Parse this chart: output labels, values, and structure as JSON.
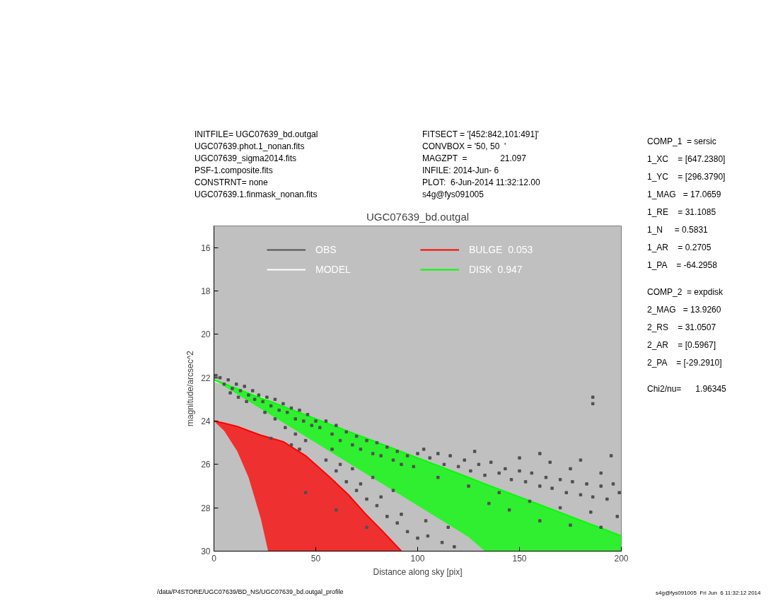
{
  "chart_data": {
    "type": "scatter",
    "title": "UGC07639_bd.outgal",
    "xlabel": "Distance along sky [pix]",
    "ylabel": "magnitude/arcsec^2",
    "xlim": [
      0,
      200
    ],
    "ylim": [
      30,
      15
    ],
    "xticks": [
      0,
      50,
      100,
      150,
      200
    ],
    "yticks": [
      16,
      18,
      20,
      22,
      24,
      26,
      28,
      30
    ],
    "grid": false,
    "legend": "top",
    "annotations": [
      "INITFILE= UGC07639_bd.outgal",
      "UGC07639.phot.1_nonan.fits",
      "UGC07639_sigma2014.fits",
      "PSF-1.composite.fits",
      "CONSTRNT= none",
      "UGC07639.1.finmask_nonan.fits",
      "FITSECT = '[452:842,101:491]'",
      "CONVBOX = '50, 50  '",
      "MAGZPT  =              21.097",
      "INFILE: 2014-Jun- 6",
      "PLOT:  6-Jun-2014 11:32:12.00",
      "s4g@fys091005",
      "COMP_1  = sersic",
      "1_XC    = [647.2380]",
      "1_YC    = [296.3790]",
      "1_MAG   = 17.0659",
      "1_RE    = 31.1085",
      "1_N     = 0.5831",
      "1_AR    = 0.2705",
      "1_PA    = -64.2958",
      "COMP_2  = expdisk",
      "2_MAG   = 13.9260",
      "2_RS    = 31.0507",
      "2_AR    = [0.5967]",
      "2_PA    = [-29.2910]",
      "Chi2/nu=      1.96345",
      "/data/P4STORE/UGC07639/BD_NS/UGC07639_bd.outgal_profile",
      "s4g@fys091005  Fri Jun  6 11:32:12 2014"
    ],
    "series": [
      {
        "name": "OBS",
        "marker": "square",
        "color": "#505050",
        "x": [
          1,
          3,
          5,
          7,
          9,
          11,
          13,
          15,
          17,
          19,
          12,
          16,
          20,
          8,
          22,
          24,
          26,
          28,
          30,
          32,
          34,
          36,
          38,
          40,
          42,
          44,
          46,
          48,
          25,
          30,
          35,
          40,
          45,
          28,
          38,
          50,
          42,
          52,
          55,
          58,
          60,
          62,
          65,
          68,
          70,
          72,
          75,
          78,
          80,
          82,
          85,
          88,
          90,
          92,
          95,
          98,
          100,
          55,
          60,
          65,
          70,
          75,
          80,
          85,
          90,
          95,
          100,
          62,
          72,
          82,
          92,
          58,
          68,
          78,
          88,
          45,
          60,
          75,
          103,
          106,
          110,
          113,
          116,
          120,
          123,
          126,
          130,
          133,
          136,
          140,
          143,
          146,
          150,
          153,
          156,
          160,
          163,
          166,
          170,
          173,
          176,
          180,
          183,
          186,
          190,
          193,
          196,
          199,
          110,
          125,
          140,
          155,
          170,
          185,
          198,
          105,
          112,
          118,
          104,
          115,
          150,
          165,
          180,
          195,
          186,
          186,
          128,
          160,
          175,
          190,
          135,
          145,
          160,
          175,
          190
        ],
        "values": [
          21.9,
          22.0,
          22.3,
          22.1,
          22.5,
          22.3,
          22.6,
          22.4,
          22.8,
          22.6,
          22.9,
          23.1,
          23.0,
          22.7,
          22.8,
          23.1,
          22.9,
          23.3,
          23.0,
          23.5,
          23.2,
          23.6,
          23.4,
          23.9,
          23.5,
          24.0,
          23.7,
          24.2,
          23.6,
          23.9,
          24.3,
          24.6,
          24.9,
          24.8,
          25.1,
          24.0,
          25.3,
          24.3,
          24.0,
          24.6,
          24.2,
          24.9,
          24.5,
          25.1,
          24.7,
          25.3,
          24.9,
          25.5,
          25.0,
          25.6,
          25.2,
          25.8,
          25.4,
          26.0,
          25.6,
          26.1,
          25.5,
          25.8,
          26.3,
          26.8,
          27.2,
          27.6,
          27.9,
          28.4,
          28.7,
          29.1,
          29.4,
          26.0,
          26.9,
          27.5,
          28.3,
          25.3,
          26.2,
          26.6,
          27.2,
          27.3,
          28.1,
          28.9,
          25.3,
          25.7,
          25.5,
          26.0,
          25.6,
          26.1,
          25.8,
          26.3,
          26.0,
          26.5,
          25.9,
          26.4,
          26.2,
          26.7,
          26.3,
          26.8,
          26.4,
          27.0,
          26.6,
          27.1,
          26.7,
          27.3,
          26.8,
          27.4,
          26.9,
          27.5,
          27.0,
          27.6,
          26.9,
          27.3,
          26.6,
          27.0,
          27.3,
          27.7,
          28.0,
          28.2,
          28.4,
          29.3,
          29.6,
          29.8,
          28.6,
          28.9,
          25.7,
          25.9,
          25.8,
          25.6,
          22.9,
          23.2,
          25.4,
          25.5,
          26.2,
          26.4,
          27.8,
          28.1,
          28.6,
          28.8,
          28.9
        ]
      },
      {
        "name": "MODEL",
        "type": "line",
        "color": "#ffffff",
        "x": [
          0,
          26
        ],
        "values": [
          22.15,
          23.0
        ]
      },
      {
        "name": "BULGE  0.053",
        "type": "line",
        "color": "#ff0000",
        "x": [
          0,
          5,
          11.5,
          17,
          23,
          26.6,
          34,
          45,
          57,
          66,
          74.6,
          83,
          92
        ],
        "values": [
          24.0,
          24.1,
          24.25,
          24.45,
          24.65,
          24.75,
          24.95,
          25.6,
          26.6,
          27.4,
          28.3,
          29.1,
          30.0
        ],
        "lower": [
          24.0,
          24.1,
          24.25,
          24.45,
          24.65,
          24.75,
          24.95,
          25.6,
          26.6,
          27.4,
          28.3,
          29.1,
          30.0
        ],
        "upper": [
          24.0,
          24.45,
          25.4,
          26.6,
          28.5,
          30.0,
          30.0,
          30.0,
          30.0,
          30.0,
          30.0,
          30.0,
          30.0
        ]
      },
      {
        "name": "DISK  0.947",
        "type": "line",
        "color": "#00ff00",
        "x": [
          0,
          25,
          50,
          75,
          100,
          125,
          133,
          150,
          175,
          200
        ],
        "values": [
          22.1,
          23.0,
          23.9,
          24.8,
          25.7,
          26.6,
          26.9,
          27.5,
          28.4,
          29.3
        ],
        "lower": [
          22.1,
          23.0,
          23.9,
          24.8,
          25.7,
          26.6,
          26.9,
          27.5,
          28.4,
          29.3
        ],
        "upper": [
          22.1,
          23.55,
          25.0,
          26.45,
          27.9,
          29.35,
          30.0,
          30.0,
          30.0,
          30.0
        ]
      }
    ]
  }
}
